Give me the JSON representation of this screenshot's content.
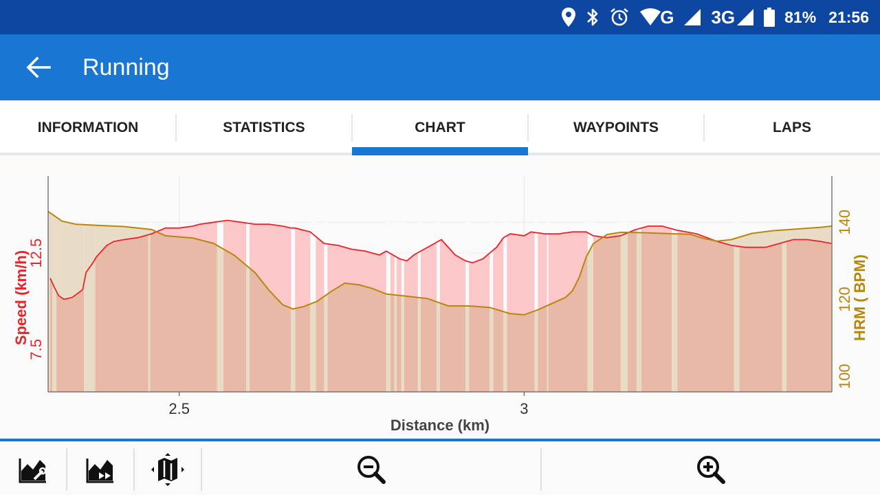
{
  "status_bar": {
    "network_g": "G",
    "network_3g": "3G",
    "battery": "81%",
    "time": "21:56",
    "icons": [
      "location-icon",
      "bluetooth-icon",
      "alarm-icon",
      "wifi-icon",
      "signal-icon",
      "battery-icon"
    ]
  },
  "app_bar": {
    "title": "Running",
    "back_icon": "arrow-left-icon"
  },
  "tabs": [
    {
      "label": "INFORMATION"
    },
    {
      "label": "STATISTICS"
    },
    {
      "label": "CHART",
      "active": true
    },
    {
      "label": "WAYPOINTS"
    },
    {
      "label": "LAPS"
    }
  ],
  "colors": {
    "primary": "#1976d2",
    "status": "#0d47a1",
    "speed": "#e8232a",
    "speed_fill": "#fbc7c9",
    "hrm": "#b8860b",
    "hrm_fill": "#e8dcc6",
    "overlap_fill": "#e8b9a6"
  },
  "chart_data": {
    "type": "line",
    "xlabel": "Distance (km)",
    "xlim": [
      2.31,
      3.446
    ],
    "xticks": [
      2.5,
      3
    ],
    "xtick_labels": [
      "2.5",
      "3"
    ],
    "grid": true,
    "series": [
      {
        "name": "Speed (km/h)",
        "axis": "left",
        "ylabel": "Speed (km/h)",
        "ylim": [
          5.3,
          16.5
        ],
        "yticks": [
          7.5,
          12.5
        ],
        "ytick_labels": [
          "7.5",
          "12.5"
        ],
        "x": [
          2.313,
          2.318,
          2.325,
          2.333,
          2.345,
          2.36,
          2.365,
          2.375,
          2.38,
          2.39,
          2.395,
          2.405,
          2.42,
          2.44,
          2.46,
          2.48,
          2.5,
          2.52,
          2.53,
          2.55,
          2.57,
          2.59,
          2.61,
          2.63,
          2.65,
          2.662,
          2.668,
          2.69,
          2.7,
          2.71,
          2.73,
          2.75,
          2.77,
          2.79,
          2.8,
          2.82,
          2.83,
          2.84,
          2.855,
          2.87,
          2.88,
          2.9,
          2.915,
          2.925,
          2.94,
          2.95,
          2.96,
          2.97,
          2.98,
          3.0,
          3.01,
          3.03,
          3.05,
          3.07,
          3.09,
          3.1,
          3.12,
          3.14,
          3.16,
          3.18,
          3.2,
          3.22,
          3.25,
          3.28,
          3.3,
          3.32,
          3.35,
          3.37,
          3.39,
          3.41,
          3.43,
          3.445
        ],
        "y": [
          11.2,
          10.8,
          10.3,
          10.1,
          10.2,
          10.6,
          11.5,
          12.0,
          12.3,
          12.7,
          12.9,
          13.1,
          13.2,
          13.3,
          13.5,
          13.8,
          13.8,
          13.9,
          14.0,
          14.1,
          14.2,
          14.1,
          14.0,
          14.0,
          13.9,
          13.8,
          13.8,
          13.6,
          13.3,
          13.0,
          12.9,
          12.7,
          12.6,
          12.4,
          12.6,
          12.2,
          12.1,
          12.4,
          12.7,
          13.0,
          13.2,
          12.4,
          12.1,
          12.0,
          12.2,
          12.5,
          12.8,
          13.3,
          13.5,
          13.4,
          13.6,
          13.5,
          13.5,
          13.6,
          13.6,
          13.4,
          13.3,
          13.4,
          13.7,
          13.9,
          13.9,
          13.7,
          13.5,
          13.1,
          12.9,
          12.8,
          12.8,
          13.0,
          13.2,
          13.2,
          13.1,
          13.0
        ]
      },
      {
        "name": "HRM ( BPM)",
        "axis": "right",
        "ylabel": "HRM ( BPM)",
        "ylim": [
          96,
          152
        ],
        "yticks": [
          100,
          120,
          140
        ],
        "ytick_labels": [
          "100",
          "120",
          "140"
        ],
        "x": [
          2.31,
          2.33,
          2.35,
          2.38,
          2.42,
          2.46,
          2.48,
          2.5,
          2.52,
          2.55,
          2.58,
          2.61,
          2.63,
          2.65,
          2.665,
          2.68,
          2.7,
          2.72,
          2.74,
          2.76,
          2.78,
          2.8,
          2.83,
          2.86,
          2.89,
          2.92,
          2.95,
          2.98,
          3.0,
          3.02,
          3.04,
          3.06,
          3.07,
          3.08,
          3.09,
          3.1,
          3.12,
          3.14,
          3.17,
          3.2,
          3.22,
          3.24,
          3.26,
          3.28,
          3.3,
          3.33,
          3.36,
          3.4,
          3.43,
          3.446
        ],
        "y": [
          142.8,
          140.3,
          139.5,
          139.2,
          138.9,
          138.1,
          136.5,
          136.2,
          135.9,
          134.5,
          131.4,
          126.9,
          122.4,
          118.6,
          117.5,
          118.1,
          119.5,
          122.0,
          124.2,
          123.8,
          122.8,
          121.4,
          120.8,
          120.2,
          118.3,
          118.3,
          117.9,
          116.3,
          116.0,
          117.3,
          118.9,
          120.5,
          122.2,
          125.8,
          131.0,
          134.4,
          136.8,
          137.4,
          137.3,
          137.1,
          137.0,
          136.9,
          135.8,
          135.1,
          135.5,
          137.1,
          137.8,
          138.3,
          138.7,
          139.0
        ]
      }
    ]
  },
  "bottom_bar": {
    "buttons": [
      {
        "icon": "chart-settings-icon"
      },
      {
        "icon": "chart-play-icon"
      },
      {
        "icon": "map-icon"
      },
      {
        "icon": "zoom-out-icon"
      },
      {
        "icon": "zoom-in-icon"
      }
    ]
  }
}
